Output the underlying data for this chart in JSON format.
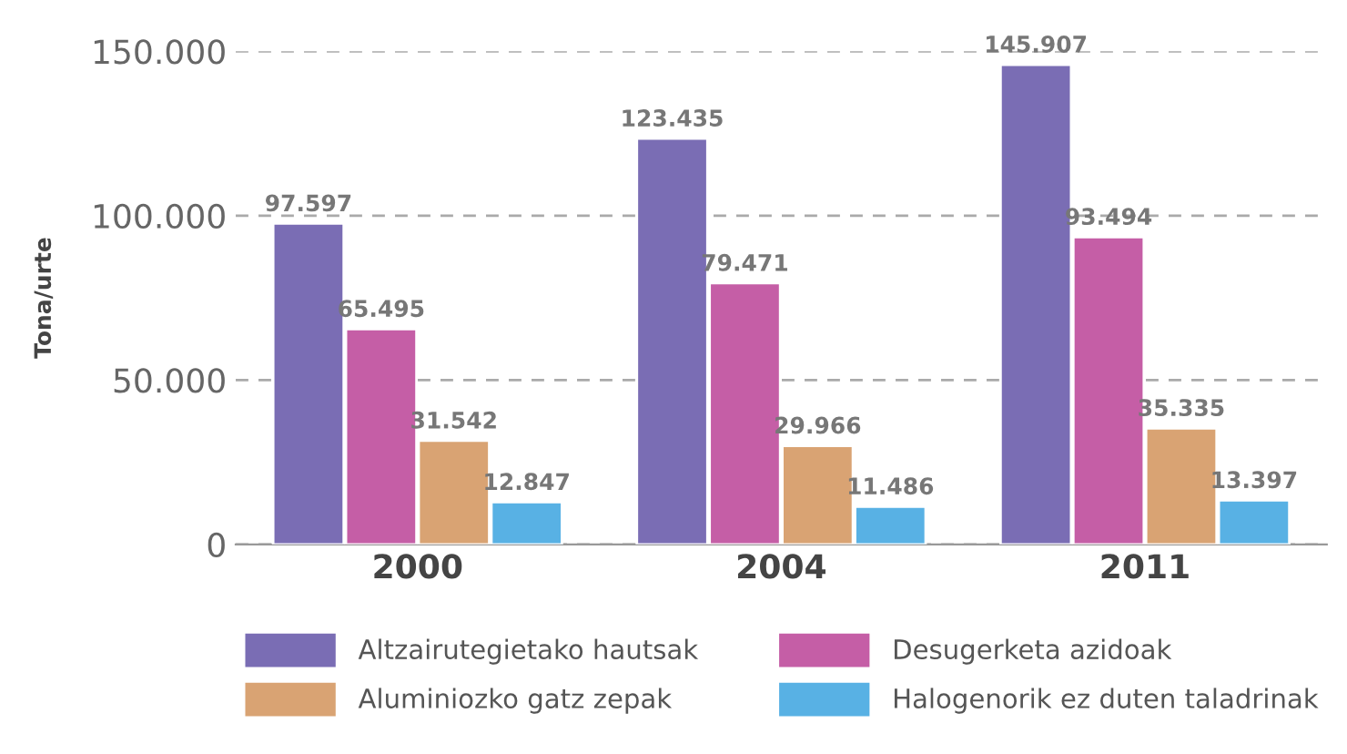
{
  "chart_data": {
    "type": "bar",
    "ylabel": "Tona/urte",
    "categories": [
      "2000",
      "2004",
      "2011"
    ],
    "series": [
      {
        "name": "Altzairutegietako hautsak",
        "color": "#7a6db4",
        "values": [
          97597,
          123435,
          145907
        ],
        "value_labels": [
          "97.597",
          "123.435",
          "145.907"
        ]
      },
      {
        "name": "Desugerketa azidoak",
        "color": "#c55ea6",
        "values": [
          65495,
          79471,
          93494
        ],
        "value_labels": [
          "65.495",
          "79.471",
          "93.494"
        ]
      },
      {
        "name": "Aluminiozko gatz zepak",
        "color": "#d9a373",
        "values": [
          31542,
          29966,
          35335
        ],
        "value_labels": [
          "31.542",
          "29.966",
          "35.335"
        ]
      },
      {
        "name": "Halogenorik ez duten taladrinak",
        "color": "#58b1e4",
        "values": [
          12847,
          11486,
          13397
        ],
        "value_labels": [
          "12.847",
          "11.486",
          "13.397"
        ]
      }
    ],
    "ylim": [
      0,
      150000
    ],
    "yticks": [
      {
        "value": 0,
        "label": "0"
      },
      {
        "value": 50000,
        "label": "50.000"
      },
      {
        "value": 100000,
        "label": "100.000"
      },
      {
        "value": 150000,
        "label": "150.000"
      }
    ],
    "grid": "y",
    "legend": "bottom"
  }
}
